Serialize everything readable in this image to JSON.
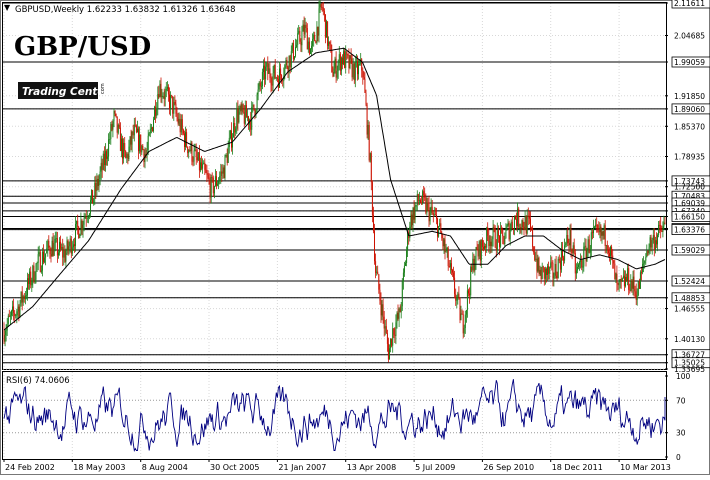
{
  "window": {
    "header": "GBPUSD,Weekly  1.62233 1.63832 1.61326 1.63648",
    "symbol_title": "GBP/USD",
    "logo_text": "Trading Center",
    "logo_small": "com"
  },
  "colors": {
    "up": "#1a7f1a",
    "down": "#cc1100",
    "ma": "#000000",
    "rsi": "#000080",
    "grid": "#d8d8d8",
    "frame": "#000000",
    "background": "#ffffff"
  },
  "chart_data": [
    {
      "type": "candlestick",
      "title": "GBPUSD,Weekly",
      "ohlc_last": {
        "open": 1.62233,
        "high": 1.63832,
        "low": 1.61326,
        "close": 1.63648
      },
      "ylim": [
        1.3369,
        2.1161
      ],
      "y_tick_labels": [
        "2.11611",
        "2.04685",
        "1.99059",
        "1.91850",
        "1.89060",
        "1.85370",
        "1.78935",
        "1.73743",
        "1.72500",
        "1.70483",
        "1.69039",
        "1.67340",
        "1.66150",
        "1.63608",
        "1.63376",
        "1.59029",
        "1.52424",
        "1.48853",
        "1.46555",
        "1.40130",
        "1.36727",
        "1.35025",
        "1.33695"
      ],
      "horizontal_levels": [
        2.11611,
        1.99059,
        1.8906,
        1.73743,
        1.70483,
        1.69039,
        1.6734,
        1.6615,
        1.63608,
        1.63376,
        1.59029,
        1.52424,
        1.48853,
        1.36727,
        1.35025
      ],
      "x_tick_labels": [
        "24 Feb 2002",
        "18 May 2003",
        "8 Aug 2004",
        "30 Oct 2005",
        "21 Jan 2007",
        "13 Apr 2008",
        "5 Jul 2009",
        "26 Sep 2010",
        "18 Dec 2011",
        "10 Mar 2013"
      ],
      "series": [
        {
          "name": "price",
          "anchors": [
            [
              "2002-02-24",
              1.42
            ],
            [
              "2002-06-01",
              1.47
            ],
            [
              "2002-10-01",
              1.56
            ],
            [
              "2003-01-01",
              1.6
            ],
            [
              "2003-04-01",
              1.58
            ],
            [
              "2003-07-01",
              1.64
            ],
            [
              "2003-10-01",
              1.7
            ],
            [
              "2003-12-15",
              1.78
            ],
            [
              "2004-02-15",
              1.87
            ],
            [
              "2004-05-01",
              1.78
            ],
            [
              "2004-06-25",
              1.84
            ],
            [
              "2004-09-15",
              1.79
            ],
            [
              "2004-12-05",
              1.94
            ],
            [
              "2005-03-01",
              1.9
            ],
            [
              "2005-06-01",
              1.82
            ],
            [
              "2005-10-01",
              1.75
            ],
            [
              "2005-11-15",
              1.72
            ],
            [
              "2006-02-01",
              1.76
            ],
            [
              "2006-05-01",
              1.88
            ],
            [
              "2006-08-01",
              1.87
            ],
            [
              "2006-11-01",
              1.97
            ],
            [
              "2007-02-01",
              1.96
            ],
            [
              "2007-04-15",
              2.0
            ],
            [
              "2007-07-20",
              2.06
            ],
            [
              "2007-09-01",
              2.01
            ],
            [
              "2007-11-10",
              2.11
            ],
            [
              "2008-01-20",
              1.97
            ],
            [
              "2008-03-20",
              2.0
            ],
            [
              "2008-06-15",
              1.97
            ],
            [
              "2008-08-01",
              1.98
            ],
            [
              "2008-09-20",
              1.78
            ],
            [
              "2008-10-25",
              1.55
            ],
            [
              "2009-01-20",
              1.37
            ],
            [
              "2009-02-15",
              1.42
            ],
            [
              "2009-04-01",
              1.45
            ],
            [
              "2009-06-05",
              1.65
            ],
            [
              "2009-08-10",
              1.7
            ],
            [
              "2009-11-10",
              1.66
            ],
            [
              "2009-12-10",
              1.64
            ],
            [
              "2010-02-01",
              1.58
            ],
            [
              "2010-05-20",
              1.43
            ],
            [
              "2010-08-01",
              1.57
            ],
            [
              "2010-11-05",
              1.62
            ],
            [
              "2011-02-01",
              1.61
            ],
            [
              "2011-05-01",
              1.66
            ],
            [
              "2011-08-01",
              1.64
            ],
            [
              "2011-10-01",
              1.54
            ],
            [
              "2012-01-10",
              1.54
            ],
            [
              "2012-04-20",
              1.62
            ],
            [
              "2012-06-01",
              1.54
            ],
            [
              "2012-09-20",
              1.62
            ],
            [
              "2012-12-20",
              1.62
            ],
            [
              "2013-03-01",
              1.5
            ],
            [
              "2013-05-01",
              1.53
            ],
            [
              "2013-07-10",
              1.5
            ],
            [
              "2013-09-15",
              1.6
            ],
            [
              "2013-11-15",
              1.62
            ],
            [
              "2014-01-05",
              1.64
            ]
          ]
        },
        {
          "name": "moving average",
          "anchors": [
            [
              "2002-02-24",
              1.42
            ],
            [
              "2002-09-01",
              1.47
            ],
            [
              "2003-03-01",
              1.54
            ],
            [
              "2003-09-01",
              1.61
            ],
            [
              "2004-04-01",
              1.72
            ],
            [
              "2004-10-01",
              1.8
            ],
            [
              "2005-04-01",
              1.83
            ],
            [
              "2005-10-01",
              1.8
            ],
            [
              "2006-04-01",
              1.82
            ],
            [
              "2006-10-01",
              1.89
            ],
            [
              "2007-04-01",
              1.97
            ],
            [
              "2007-10-01",
              2.01
            ],
            [
              "2008-04-01",
              2.02
            ],
            [
              "2008-08-01",
              1.99
            ],
            [
              "2008-11-01",
              1.92
            ],
            [
              "2009-02-01",
              1.74
            ],
            [
              "2009-06-01",
              1.62
            ],
            [
              "2009-11-01",
              1.63
            ],
            [
              "2010-03-01",
              1.62
            ],
            [
              "2010-07-01",
              1.56
            ],
            [
              "2010-11-01",
              1.56
            ],
            [
              "2011-03-01",
              1.6
            ],
            [
              "2011-07-01",
              1.62
            ],
            [
              "2011-11-01",
              1.62
            ],
            [
              "2012-03-01",
              1.59
            ],
            [
              "2012-07-01",
              1.57
            ],
            [
              "2012-11-01",
              1.58
            ],
            [
              "2013-03-01",
              1.57
            ],
            [
              "2013-07-01",
              1.55
            ],
            [
              "2013-11-01",
              1.56
            ],
            [
              "2014-01-05",
              1.57
            ]
          ]
        }
      ]
    },
    {
      "type": "line",
      "title": "RSI(6) 74.0606",
      "ylim": [
        0,
        100
      ],
      "y_tick_labels": [
        "100",
        "70",
        "30",
        "0"
      ],
      "levels": [
        70,
        30
      ],
      "series": [
        {
          "name": "RSI(6)",
          "last": 74.0606,
          "band": [
            8,
            96
          ]
        }
      ]
    }
  ]
}
